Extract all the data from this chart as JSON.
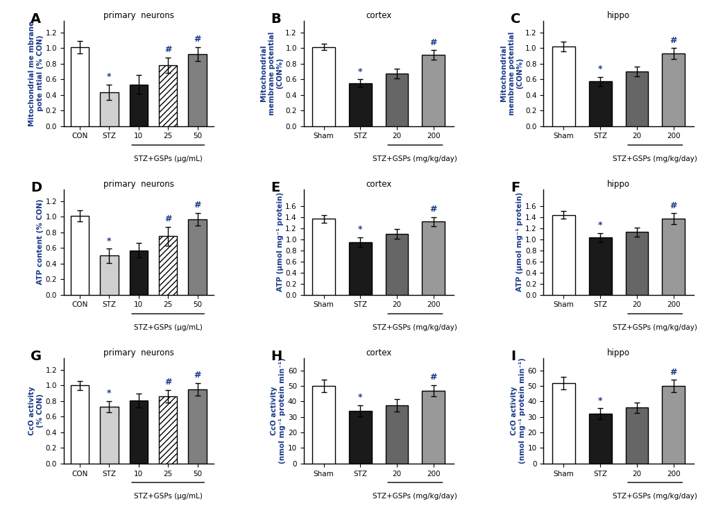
{
  "panels": [
    {
      "label": "A",
      "title": "primary  neurons",
      "ylabel": "Mitochondrial me mbrane\npote ntial (% CON)",
      "categories": [
        "CON",
        "STZ",
        "10",
        "25",
        "50"
      ],
      "xlabel_group": "STZ+GSPs (μg/mL)",
      "xlabel_group_start": 2,
      "values": [
        1.01,
        0.43,
        0.53,
        0.78,
        0.92
      ],
      "errors": [
        0.08,
        0.1,
        0.12,
        0.1,
        0.09
      ],
      "ylim": [
        0,
        1.35
      ],
      "yticks": [
        0,
        0.2,
        0.4,
        0.6,
        0.8,
        1.0,
        1.2
      ],
      "colors": [
        "white",
        "#d0d0d0",
        "#1a1a1a",
        "white",
        "#808080"
      ],
      "hatches": [
        "",
        "",
        "",
        "////",
        ""
      ],
      "edgecolors": [
        "black",
        "black",
        "black",
        "black",
        "black"
      ],
      "significance": [
        "",
        "*",
        "",
        "#",
        "#"
      ],
      "sig_color": "#1a3a8a"
    },
    {
      "label": "B",
      "title": "cortex",
      "ylabel": "Mitochondrial\nmembrane potential\n(CON%)",
      "categories": [
        "Sham",
        "STZ",
        "20",
        "200"
      ],
      "xlabel_group": "STZ+GSPs (mg/kg/day)",
      "xlabel_group_start": 2,
      "values": [
        1.01,
        0.55,
        0.67,
        0.91
      ],
      "errors": [
        0.04,
        0.05,
        0.06,
        0.06
      ],
      "ylim": [
        0,
        1.35
      ],
      "yticks": [
        0,
        0.2,
        0.4,
        0.6,
        0.8,
        1.0,
        1.2
      ],
      "colors": [
        "white",
        "#1a1a1a",
        "#666666",
        "#999999"
      ],
      "hatches": [
        "",
        "",
        "",
        ""
      ],
      "edgecolors": [
        "black",
        "black",
        "black",
        "black"
      ],
      "significance": [
        "",
        "*",
        "",
        "#"
      ],
      "sig_color": "#1a3a8a"
    },
    {
      "label": "C",
      "title": "hippo",
      "ylabel": "Mitochondrial\nmembrane potential\n(CON%)",
      "categories": [
        "Sham",
        "STZ",
        "20",
        "200"
      ],
      "xlabel_group": "STZ+GSPs (mg/kg/day)",
      "xlabel_group_start": 2,
      "values": [
        1.02,
        0.57,
        0.7,
        0.93
      ],
      "errors": [
        0.06,
        0.06,
        0.06,
        0.07
      ],
      "ylim": [
        0,
        1.35
      ],
      "yticks": [
        0,
        0.2,
        0.4,
        0.6,
        0.8,
        1.0,
        1.2
      ],
      "colors": [
        "white",
        "#1a1a1a",
        "#666666",
        "#999999"
      ],
      "hatches": [
        "",
        "",
        "",
        ""
      ],
      "edgecolors": [
        "black",
        "black",
        "black",
        "black"
      ],
      "significance": [
        "",
        "*",
        "",
        "#"
      ],
      "sig_color": "#1a3a8a"
    },
    {
      "label": "D",
      "title": "primary  neurons",
      "ylabel": "ATP content (% CON)",
      "categories": [
        "CON",
        "STZ",
        "10",
        "25",
        "50"
      ],
      "xlabel_group": "STZ+GSPs (μg/mL)",
      "xlabel_group_start": 2,
      "values": [
        1.01,
        0.5,
        0.57,
        0.75,
        0.97
      ],
      "errors": [
        0.07,
        0.09,
        0.09,
        0.12,
        0.08
      ],
      "ylim": [
        0,
        1.35
      ],
      "yticks": [
        0,
        0.2,
        0.4,
        0.6,
        0.8,
        1.0,
        1.2
      ],
      "colors": [
        "white",
        "#d0d0d0",
        "#1a1a1a",
        "white",
        "#808080"
      ],
      "hatches": [
        "",
        "",
        "",
        "////",
        ""
      ],
      "edgecolors": [
        "black",
        "black",
        "black",
        "black",
        "black"
      ],
      "significance": [
        "",
        "*",
        "",
        "#",
        "#"
      ],
      "sig_color": "#1a3a8a"
    },
    {
      "label": "E",
      "title": "cortex",
      "ylabel": "ATP (μmol mg⁻¹ protein)",
      "categories": [
        "Sham",
        "STZ",
        "20",
        "200"
      ],
      "xlabel_group": "STZ+GSPs (mg/kg/day)",
      "xlabel_group_start": 2,
      "values": [
        1.37,
        0.95,
        1.1,
        1.32
      ],
      "errors": [
        0.07,
        0.09,
        0.09,
        0.08
      ],
      "ylim": [
        0,
        1.9
      ],
      "yticks": [
        0,
        0.2,
        0.4,
        0.6,
        0.8,
        1.0,
        1.2,
        1.4,
        1.6
      ],
      "colors": [
        "white",
        "#1a1a1a",
        "#666666",
        "#999999"
      ],
      "hatches": [
        "",
        "",
        "",
        ""
      ],
      "edgecolors": [
        "black",
        "black",
        "black",
        "black"
      ],
      "significance": [
        "",
        "*",
        "",
        "#"
      ],
      "sig_color": "#1a3a8a"
    },
    {
      "label": "F",
      "title": "hippo",
      "ylabel": "ATP (μmol mg⁻¹ protein)",
      "categories": [
        "Sham",
        "STZ",
        "20",
        "200"
      ],
      "xlabel_group": "STZ+GSPs (mg/kg/day)",
      "xlabel_group_start": 2,
      "values": [
        1.44,
        1.03,
        1.13,
        1.37
      ],
      "errors": [
        0.07,
        0.08,
        0.08,
        0.1
      ],
      "ylim": [
        0,
        1.9
      ],
      "yticks": [
        0,
        0.2,
        0.4,
        0.6,
        0.8,
        1.0,
        1.2,
        1.4,
        1.6
      ],
      "colors": [
        "white",
        "#1a1a1a",
        "#666666",
        "#999999"
      ],
      "hatches": [
        "",
        "",
        "",
        ""
      ],
      "edgecolors": [
        "black",
        "black",
        "black",
        "black"
      ],
      "significance": [
        "",
        "*",
        "",
        "#"
      ],
      "sig_color": "#1a3a8a"
    },
    {
      "label": "G",
      "title": "primary  neurons",
      "ylabel": "CcO activity\n(% CON)",
      "categories": [
        "CON",
        "STZ",
        "10",
        "25",
        "50"
      ],
      "xlabel_group": "STZ+GSPs (μg/mL)",
      "xlabel_group_start": 2,
      "values": [
        1.0,
        0.73,
        0.81,
        0.86,
        0.95
      ],
      "errors": [
        0.06,
        0.07,
        0.09,
        0.08,
        0.08
      ],
      "ylim": [
        0,
        1.35
      ],
      "yticks": [
        0,
        0.2,
        0.4,
        0.6,
        0.8,
        1.0,
        1.2
      ],
      "colors": [
        "white",
        "#d0d0d0",
        "#1a1a1a",
        "white",
        "#808080"
      ],
      "hatches": [
        "",
        "",
        "",
        "////",
        ""
      ],
      "edgecolors": [
        "black",
        "black",
        "black",
        "black",
        "black"
      ],
      "significance": [
        "",
        "*",
        "",
        "#",
        "#"
      ],
      "sig_color": "#1a3a8a"
    },
    {
      "label": "H",
      "title": "cortex",
      "ylabel": "CcO activity\n(nmol mg⁻¹ protein min⁻¹)",
      "categories": [
        "Sham",
        "STZ",
        "20",
        "200"
      ],
      "xlabel_group": "STZ+GSPs (mg/kg/day)",
      "xlabel_group_start": 2,
      "values": [
        50.0,
        34.0,
        37.5,
        47.0
      ],
      "errors": [
        4.0,
        3.5,
        4.0,
        3.5
      ],
      "ylim": [
        0,
        68
      ],
      "yticks": [
        0,
        10,
        20,
        30,
        40,
        50,
        60
      ],
      "colors": [
        "white",
        "#1a1a1a",
        "#666666",
        "#999999"
      ],
      "hatches": [
        "",
        "",
        "",
        ""
      ],
      "edgecolors": [
        "black",
        "black",
        "black",
        "black"
      ],
      "significance": [
        "",
        "*",
        "",
        "#"
      ],
      "sig_color": "#1a3a8a"
    },
    {
      "label": "I",
      "title": "hippo",
      "ylabel": "CcO activity\n(nmol mg⁻¹ protein min⁻¹)",
      "categories": [
        "Sham",
        "STZ",
        "20",
        "200"
      ],
      "xlabel_group": "STZ+GSPs (mg/kg/day)",
      "xlabel_group_start": 2,
      "values": [
        52.0,
        32.0,
        36.0,
        50.0
      ],
      "errors": [
        4.0,
        3.5,
        3.5,
        4.0
      ],
      "ylim": [
        0,
        68
      ],
      "yticks": [
        0,
        10,
        20,
        30,
        40,
        50,
        60
      ],
      "colors": [
        "white",
        "#1a1a1a",
        "#666666",
        "#999999"
      ],
      "hatches": [
        "",
        "",
        "",
        ""
      ],
      "edgecolors": [
        "black",
        "black",
        "black",
        "black"
      ],
      "significance": [
        "",
        "*",
        "",
        "#"
      ],
      "sig_color": "#1a3a8a"
    }
  ]
}
